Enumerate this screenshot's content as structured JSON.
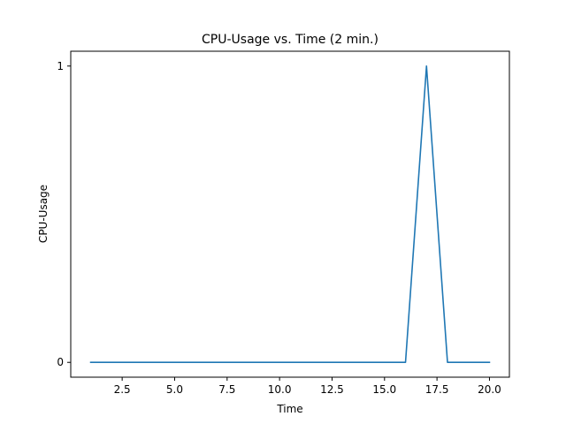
{
  "chart_data": {
    "type": "line",
    "title": "CPU-Usage vs. Time (2 min.)",
    "xlabel": "Time",
    "ylabel": "CPU-Usage",
    "xlim": [
      0.05,
      20.95
    ],
    "ylim": [
      -0.05,
      1.05
    ],
    "x_ticks": [
      2.5,
      5.0,
      7.5,
      10.0,
      12.5,
      15.0,
      17.5,
      20.0
    ],
    "x_tick_labels": [
      "2.5",
      "5.0",
      "7.5",
      "10.0",
      "12.5",
      "15.0",
      "17.5",
      "20.0"
    ],
    "y_ticks": [
      0,
      1
    ],
    "y_tick_labels": [
      "0",
      "1"
    ],
    "grid": false,
    "series": [
      {
        "color": "#1f77b4",
        "x": [
          1,
          2,
          3,
          4,
          5,
          6,
          7,
          8,
          9,
          10,
          11,
          12,
          13,
          14,
          15,
          16,
          17,
          18,
          19,
          20
        ],
        "y": [
          0,
          0,
          0,
          0,
          0,
          0,
          0,
          0,
          0,
          0,
          0,
          0,
          0,
          0,
          0,
          0,
          1,
          0,
          0,
          0
        ]
      }
    ]
  }
}
